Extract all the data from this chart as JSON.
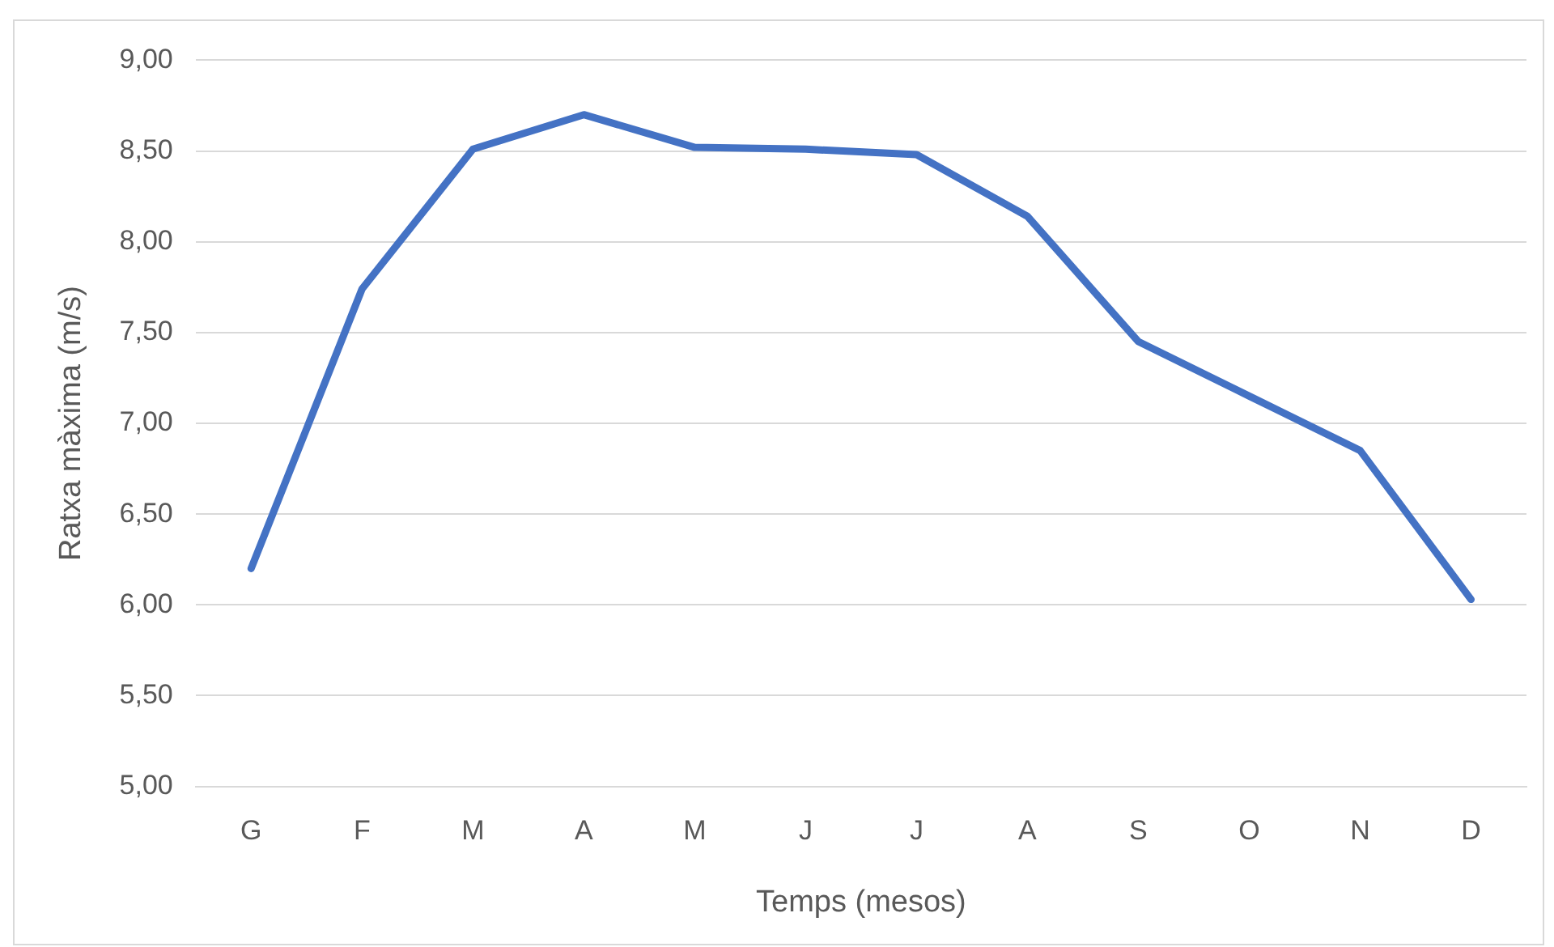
{
  "chart_data": {
    "type": "line",
    "xlabel": "Temps (mesos)",
    "ylabel": "Ratxa màxima (m/s)",
    "categories": [
      "G",
      "F",
      "M",
      "A",
      "M",
      "J",
      "J",
      "A",
      "S",
      "O",
      "N",
      "D"
    ],
    "series": [
      {
        "color": "#4472c4",
        "values": [
          6.2,
          7.74,
          8.51,
          8.7,
          8.52,
          8.51,
          8.48,
          8.14,
          7.45,
          7.15,
          6.85,
          6.03
        ]
      }
    ],
    "ylim": [
      5,
      9
    ],
    "yticks": [
      {
        "value": 5,
        "label": "5,00"
      },
      {
        "value": 5.5,
        "label": "5,50"
      },
      {
        "value": 6,
        "label": "6,00"
      },
      {
        "value": 6.5,
        "label": "6,50"
      },
      {
        "value": 7,
        "label": "7,00"
      },
      {
        "value": 7.5,
        "label": "7,50"
      },
      {
        "value": 8,
        "label": "8,00"
      },
      {
        "value": 8.5,
        "label": "8,50"
      },
      {
        "value": 9,
        "label": "9,00"
      }
    ],
    "grid": "y",
    "legend": false,
    "marker": "none",
    "line_style": "solid"
  }
}
